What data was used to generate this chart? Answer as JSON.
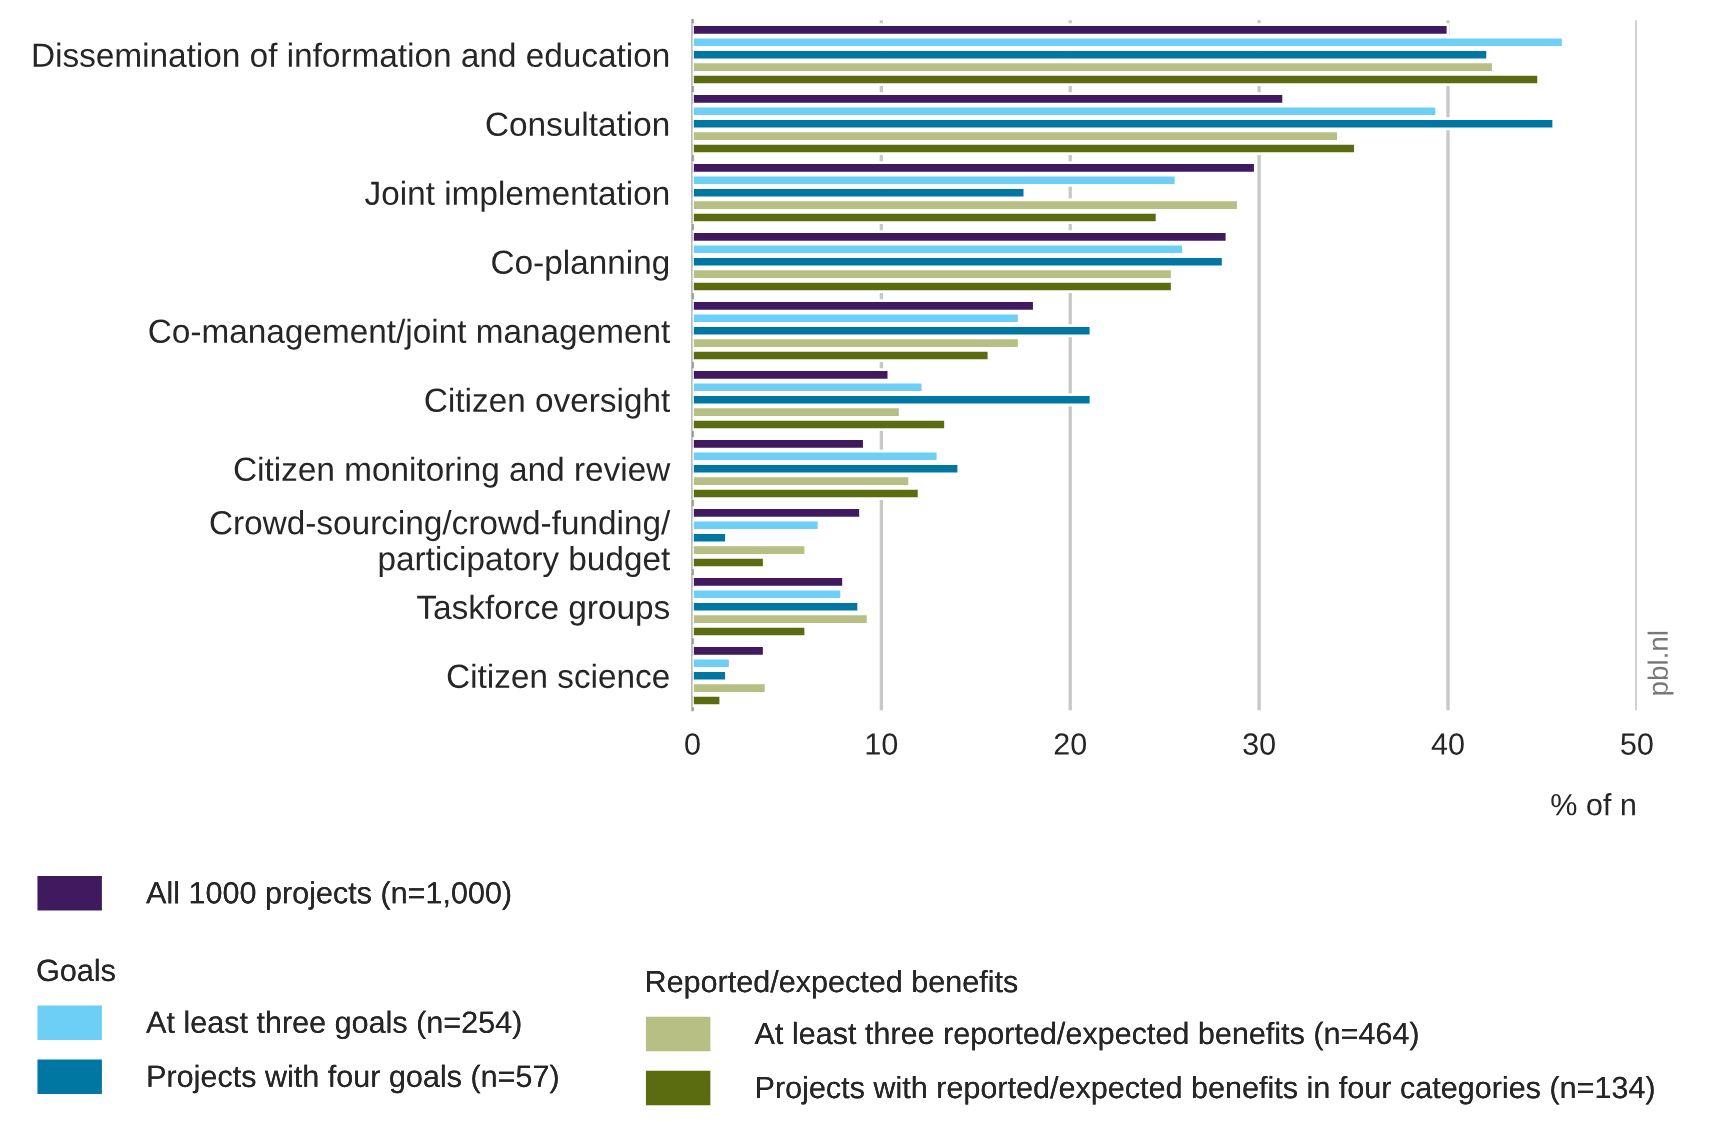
{
  "chart_data": {
    "type": "bar",
    "orientation": "horizontal",
    "categories": [
      "Dissemination of information and education",
      "Consultation",
      "Joint implementation",
      "Co-planning",
      "Co-management/joint management",
      "Citizen oversight",
      "Citizen monitoring and review",
      "Crowd-sourcing/crowd-funding/\nparticipatory budget",
      "Taskforce groups",
      "Citizen science"
    ],
    "series": [
      {
        "name": "All 1000 projects (n=1,000)",
        "color": "#3f1a5e",
        "values": [
          40.0,
          31.3,
          29.8,
          28.3,
          18.1,
          10.4,
          9.1,
          8.9,
          8.0,
          3.8
        ]
      },
      {
        "name": "At least three goals (n=254)",
        "color": "#6dcff6",
        "values": [
          46.1,
          39.4,
          25.6,
          26.0,
          17.3,
          12.2,
          13.0,
          6.7,
          7.9,
          2.0
        ]
      },
      {
        "name": "Projects with four goals (n=57)",
        "color": "#0077a3",
        "values": [
          42.1,
          45.6,
          17.6,
          28.1,
          21.1,
          21.1,
          14.1,
          1.8,
          8.8,
          1.8
        ]
      },
      {
        "name": "At least three reported/expected benefits (n=464)",
        "color": "#b7bf85",
        "values": [
          42.4,
          34.2,
          28.9,
          25.4,
          17.3,
          11.0,
          11.5,
          6.0,
          9.3,
          3.9
        ]
      },
      {
        "name": "Projects with reported/expected benefits in four categories (n=134)",
        "color": "#5a6b10",
        "values": [
          44.8,
          35.1,
          24.6,
          25.4,
          15.7,
          13.4,
          12.0,
          3.8,
          6.0,
          1.5
        ]
      }
    ],
    "xlabel": "% of n",
    "xlim": [
      0,
      50
    ],
    "xticks": [
      0,
      10,
      20,
      30,
      40,
      50
    ],
    "grid": "x",
    "legend": "bottom",
    "legend_title": [
      "Goals",
      "Reported/expected benefits"
    ],
    "annotations": [
      "pbl.nl"
    ]
  }
}
